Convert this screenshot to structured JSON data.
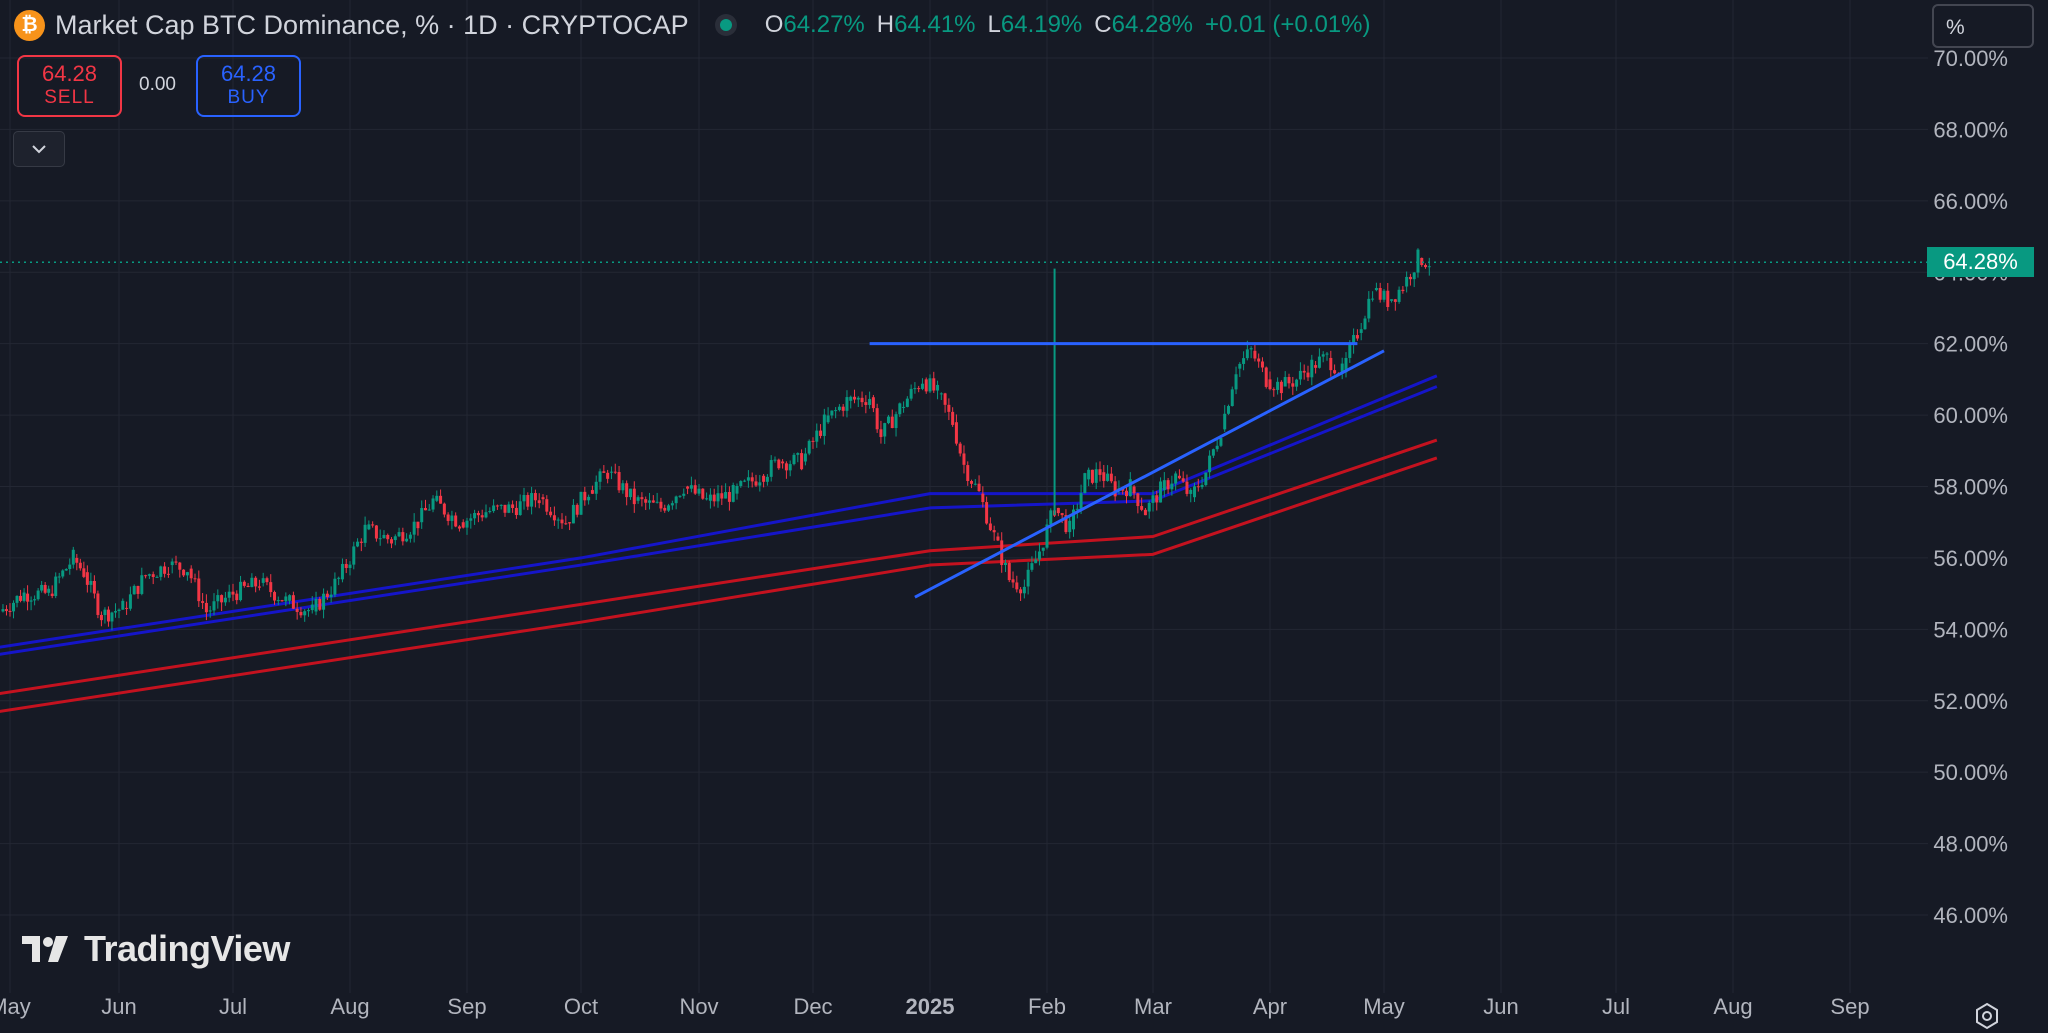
{
  "header": {
    "title": "Market Cap BTC Dominance, % · 1D · CRYPTOCAP",
    "coin_icon": "bitcoin-icon",
    "ohlc": [
      {
        "label": "O",
        "value": "64.27%"
      },
      {
        "label": "H",
        "value": "64.41%"
      },
      {
        "label": "L",
        "value": "64.19%"
      },
      {
        "label": "C",
        "value": "64.28%"
      }
    ],
    "change": "+0.01 (+0.01%)"
  },
  "trade": {
    "sell_price": "64.28",
    "sell_label": "SELL",
    "spread": "0.00",
    "buy_price": "64.28",
    "buy_label": "BUY"
  },
  "price_scale": {
    "unit": "%",
    "last_price": "64.28%"
  },
  "logo_text": "TradingView",
  "colors": {
    "background": "#161a25",
    "up": "#089981",
    "down": "#f23645",
    "trendline": "#2962ff",
    "ma_blue": "#1515c9",
    "ma_red": "#c4121f"
  },
  "chart_data": {
    "type": "candlestick",
    "title": "Market Cap BTC Dominance, %",
    "ylim": [
      45,
      70
    ],
    "ytick_values": [
      46,
      48,
      50,
      52,
      54,
      56,
      58,
      60,
      62,
      64,
      66,
      68,
      70
    ],
    "ytick_labels": [
      "46.00%",
      "48.00%",
      "50.00%",
      "52.00%",
      "54.00%",
      "56.00%",
      "58.00%",
      "60.00%",
      "62.00%",
      "64.00%",
      "66.00%",
      "68.00%",
      "70.00%"
    ],
    "xtick_dates": [
      "2024-05-01",
      "2024-06-01",
      "2024-07-01",
      "2024-08-01",
      "2024-09-01",
      "2024-10-01",
      "2024-11-01",
      "2024-12-01",
      "2025-01-01",
      "2025-02-01",
      "2025-03-01",
      "2025-04-01",
      "2025-05-01",
      "2025-06-01",
      "2025-07-01",
      "2025-08-01",
      "2025-09-01"
    ],
    "xtick_labels": [
      "May",
      "Jun",
      "Jul",
      "Aug",
      "Sep",
      "Oct",
      "Nov",
      "Dec",
      "2025",
      "Feb",
      "Mar",
      "Apr",
      "May",
      "Jun",
      "Jul",
      "Aug",
      "Sep"
    ],
    "grid": true,
    "close_series": [
      {
        "date": "2024-04-28",
        "value": 54.5
      },
      {
        "date": "2024-05-05",
        "value": 55.0
      },
      {
        "date": "2024-05-12",
        "value": 55.0
      },
      {
        "date": "2024-05-19",
        "value": 56.0
      },
      {
        "date": "2024-05-22",
        "value": 55.6
      },
      {
        "date": "2024-05-27",
        "value": 54.4
      },
      {
        "date": "2024-06-02",
        "value": 54.6
      },
      {
        "date": "2024-06-08",
        "value": 55.5
      },
      {
        "date": "2024-06-14",
        "value": 55.8
      },
      {
        "date": "2024-06-19",
        "value": 55.7
      },
      {
        "date": "2024-06-24",
        "value": 54.5
      },
      {
        "date": "2024-07-01",
        "value": 55.0
      },
      {
        "date": "2024-07-08",
        "value": 55.3
      },
      {
        "date": "2024-07-15",
        "value": 54.8
      },
      {
        "date": "2024-07-22",
        "value": 54.5
      },
      {
        "date": "2024-07-29",
        "value": 55.4
      },
      {
        "date": "2024-08-05",
        "value": 56.8
      },
      {
        "date": "2024-08-12",
        "value": 56.5
      },
      {
        "date": "2024-08-19",
        "value": 57.0
      },
      {
        "date": "2024-08-23",
        "value": 57.6
      },
      {
        "date": "2024-08-30",
        "value": 57.0
      },
      {
        "date": "2024-09-06",
        "value": 57.3
      },
      {
        "date": "2024-09-13",
        "value": 57.4
      },
      {
        "date": "2024-09-20",
        "value": 57.7
      },
      {
        "date": "2024-09-27",
        "value": 57.0
      },
      {
        "date": "2024-10-03",
        "value": 57.9
      },
      {
        "date": "2024-10-08",
        "value": 58.4
      },
      {
        "date": "2024-10-15",
        "value": 57.6
      },
      {
        "date": "2024-10-22",
        "value": 57.4
      },
      {
        "date": "2024-10-28",
        "value": 58.0
      },
      {
        "date": "2024-11-03",
        "value": 57.6
      },
      {
        "date": "2024-11-10",
        "value": 57.8
      },
      {
        "date": "2024-11-17",
        "value": 58.3
      },
      {
        "date": "2024-11-22",
        "value": 58.7
      },
      {
        "date": "2024-11-28",
        "value": 58.7
      },
      {
        "date": "2024-12-04",
        "value": 59.8
      },
      {
        "date": "2024-12-10",
        "value": 60.4
      },
      {
        "date": "2024-12-16",
        "value": 60.5
      },
      {
        "date": "2024-12-19",
        "value": 59.4
      },
      {
        "date": "2024-12-24",
        "value": 60.2
      },
      {
        "date": "2024-12-30",
        "value": 61.0
      },
      {
        "date": "2025-01-03",
        "value": 60.6
      },
      {
        "date": "2025-01-07",
        "value": 59.8
      },
      {
        "date": "2025-01-10",
        "value": 58.6
      },
      {
        "date": "2025-01-14",
        "value": 57.8
      },
      {
        "date": "2025-01-18",
        "value": 56.6
      },
      {
        "date": "2025-01-22",
        "value": 55.4
      },
      {
        "date": "2025-01-26",
        "value": 55.2
      },
      {
        "date": "2025-01-30",
        "value": 56.2
      },
      {
        "date": "2025-02-03",
        "value": 57.4
      },
      {
        "date": "2025-02-07",
        "value": 56.8
      },
      {
        "date": "2025-02-11",
        "value": 58.2
      },
      {
        "date": "2025-02-15",
        "value": 58.4
      },
      {
        "date": "2025-02-19",
        "value": 57.9
      },
      {
        "date": "2025-02-23",
        "value": 58.0
      },
      {
        "date": "2025-02-27",
        "value": 57.3
      },
      {
        "date": "2025-03-03",
        "value": 57.9
      },
      {
        "date": "2025-03-07",
        "value": 58.3
      },
      {
        "date": "2025-03-11",
        "value": 57.7
      },
      {
        "date": "2025-03-15",
        "value": 58.4
      },
      {
        "date": "2025-03-19",
        "value": 59.6
      },
      {
        "date": "2025-03-23",
        "value": 61.3
      },
      {
        "date": "2025-03-27",
        "value": 61.8
      },
      {
        "date": "2025-03-31",
        "value": 61.0
      },
      {
        "date": "2025-04-04",
        "value": 60.8
      },
      {
        "date": "2025-04-08",
        "value": 61.0
      },
      {
        "date": "2025-04-12",
        "value": 61.4
      },
      {
        "date": "2025-04-16",
        "value": 61.6
      },
      {
        "date": "2025-04-20",
        "value": 61.2
      },
      {
        "date": "2025-04-24",
        "value": 62.3
      },
      {
        "date": "2025-04-28",
        "value": 63.5
      },
      {
        "date": "2025-05-02",
        "value": 63.2
      },
      {
        "date": "2025-05-06",
        "value": 63.6
      },
      {
        "date": "2025-05-10",
        "value": 64.4
      },
      {
        "date": "2025-05-13",
        "value": 64.28
      }
    ],
    "trendlines": [
      {
        "kind": "horizontal",
        "from": {
          "date": "2024-12-16",
          "value": 62.0
        },
        "to": {
          "date": "2025-04-24",
          "value": 62.0
        }
      },
      {
        "kind": "ascending",
        "from": {
          "date": "2024-12-28",
          "value": 54.9
        },
        "to": {
          "date": "2025-05-01",
          "value": 61.8
        }
      }
    ],
    "moving_averages": [
      {
        "color": "#1515c9",
        "points": [
          {
            "date": "2024-04-28",
            "value": 53.5
          },
          {
            "date": "2024-10-01",
            "value": 56.0
          },
          {
            "date": "2025-01-01",
            "value": 57.8
          },
          {
            "date": "2025-03-01",
            "value": 57.8
          },
          {
            "date": "2025-05-15",
            "value": 61.1
          }
        ]
      },
      {
        "color": "#1515c9",
        "points": [
          {
            "date": "2024-04-28",
            "value": 53.3
          },
          {
            "date": "2024-10-01",
            "value": 55.8
          },
          {
            "date": "2025-01-01",
            "value": 57.4
          },
          {
            "date": "2025-03-01",
            "value": 57.6
          },
          {
            "date": "2025-05-15",
            "value": 60.8
          }
        ]
      },
      {
        "color": "#c4121f",
        "points": [
          {
            "date": "2024-04-28",
            "value": 52.2
          },
          {
            "date": "2024-10-01",
            "value": 54.7
          },
          {
            "date": "2025-01-01",
            "value": 56.2
          },
          {
            "date": "2025-03-01",
            "value": 56.6
          },
          {
            "date": "2025-05-15",
            "value": 59.3
          }
        ]
      },
      {
        "color": "#c4121f",
        "points": [
          {
            "date": "2024-04-28",
            "value": 51.7
          },
          {
            "date": "2024-10-01",
            "value": 54.2
          },
          {
            "date": "2025-01-01",
            "value": 55.8
          },
          {
            "date": "2025-03-01",
            "value": 56.1
          },
          {
            "date": "2025-05-15",
            "value": 58.8
          }
        ]
      }
    ],
    "last_price": 64.28,
    "price_line": 64.28
  }
}
